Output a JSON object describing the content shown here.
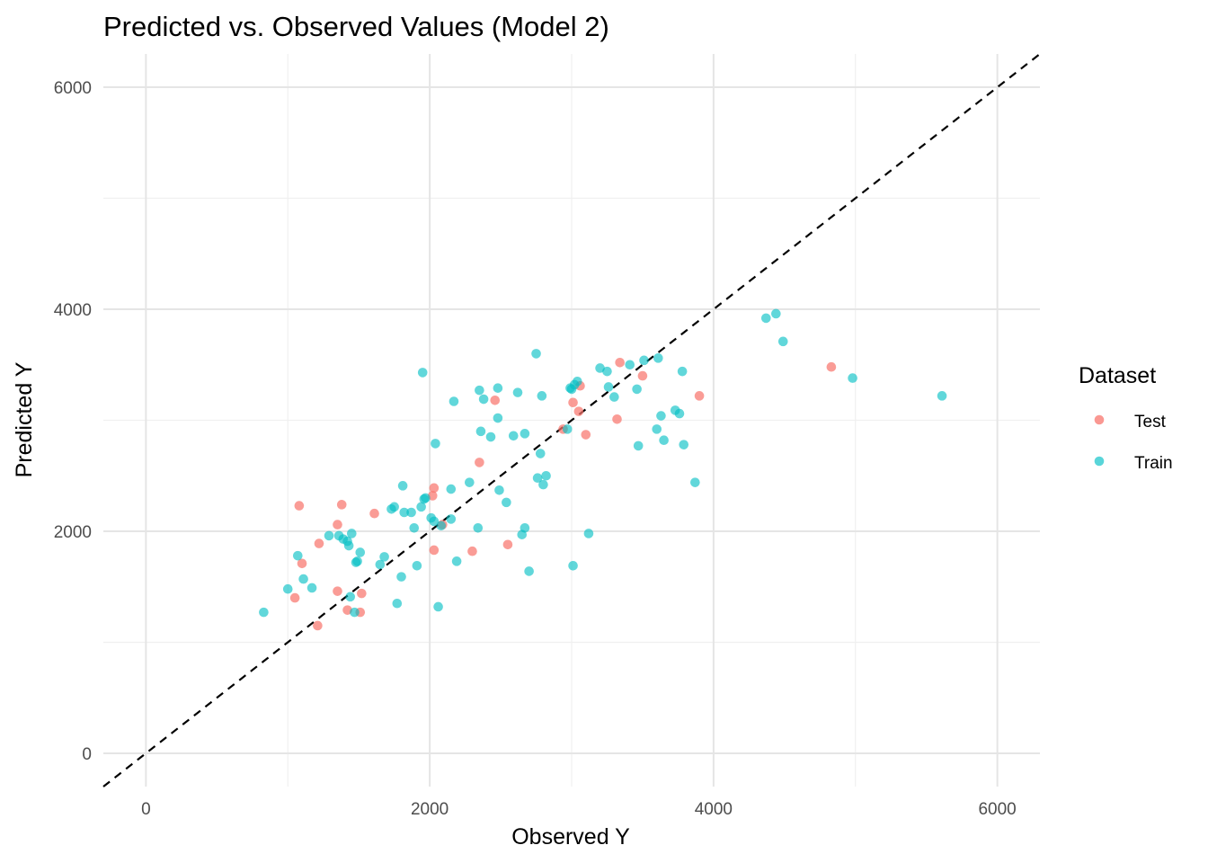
{
  "chart_data": {
    "type": "scatter",
    "title": "Predicted vs. Observed Values (Model 2)",
    "xlabel": "Observed Y",
    "ylabel": "Predicted Y",
    "xlim": [
      -300,
      6300
    ],
    "ylim": [
      -300,
      6300
    ],
    "xticks": [
      "0",
      "2000",
      "4000",
      "6000"
    ],
    "yticks": [
      "0",
      "2000",
      "4000",
      "6000"
    ],
    "x_tick_values": [
      0,
      2000,
      4000,
      6000
    ],
    "y_tick_values": [
      0,
      2000,
      4000,
      6000
    ],
    "grid": true,
    "legend_title": "Dataset",
    "legend_position": "right",
    "reference_line": "y = x (dashed)",
    "series": [
      {
        "name": "Test",
        "color": "#F8766D",
        "points": [
          [
            1080,
            2230
          ],
          [
            1100,
            1710
          ],
          [
            1050,
            1400
          ],
          [
            1220,
            1890
          ],
          [
            1210,
            1150
          ],
          [
            1350,
            2060
          ],
          [
            1380,
            2240
          ],
          [
            1350,
            1460
          ],
          [
            1420,
            1290
          ],
          [
            1510,
            1270
          ],
          [
            1520,
            1440
          ],
          [
            1610,
            2160
          ],
          [
            2020,
            2320
          ],
          [
            2030,
            2390
          ],
          [
            2030,
            1830
          ],
          [
            2090,
            2060
          ],
          [
            2300,
            1820
          ],
          [
            2350,
            2620
          ],
          [
            2460,
            3180
          ],
          [
            2550,
            1880
          ],
          [
            2940,
            2920
          ],
          [
            3010,
            3160
          ],
          [
            3050,
            3080
          ],
          [
            3060,
            3310
          ],
          [
            3100,
            2870
          ],
          [
            3320,
            3010
          ],
          [
            3340,
            3520
          ],
          [
            3500,
            3400
          ],
          [
            3900,
            3220
          ],
          [
            4830,
            3480
          ]
        ]
      },
      {
        "name": "Train",
        "color": "#00BFC4",
        "points": [
          [
            830,
            1270
          ],
          [
            1000,
            1480
          ],
          [
            1070,
            1780
          ],
          [
            1110,
            1570
          ],
          [
            1170,
            1490
          ],
          [
            1290,
            1960
          ],
          [
            1360,
            1960
          ],
          [
            1390,
            1930
          ],
          [
            1420,
            1910
          ],
          [
            1430,
            1870
          ],
          [
            1440,
            1410
          ],
          [
            1450,
            1980
          ],
          [
            1470,
            1270
          ],
          [
            1480,
            1720
          ],
          [
            1490,
            1730
          ],
          [
            1510,
            1810
          ],
          [
            1650,
            1700
          ],
          [
            1680,
            1770
          ],
          [
            1730,
            2200
          ],
          [
            1750,
            2220
          ],
          [
            1770,
            1350
          ],
          [
            1800,
            1590
          ],
          [
            1810,
            2410
          ],
          [
            1820,
            2170
          ],
          [
            1870,
            2170
          ],
          [
            1890,
            2030
          ],
          [
            1910,
            1690
          ],
          [
            1940,
            2220
          ],
          [
            1950,
            3430
          ],
          [
            1960,
            2290
          ],
          [
            1970,
            2300
          ],
          [
            2010,
            2120
          ],
          [
            2030,
            2090
          ],
          [
            2040,
            2790
          ],
          [
            2060,
            1320
          ],
          [
            2080,
            2050
          ],
          [
            2150,
            2110
          ],
          [
            2150,
            2380
          ],
          [
            2170,
            3170
          ],
          [
            2190,
            1730
          ],
          [
            2280,
            2440
          ],
          [
            2340,
            2030
          ],
          [
            2350,
            3270
          ],
          [
            2360,
            2900
          ],
          [
            2380,
            3190
          ],
          [
            2430,
            2850
          ],
          [
            2480,
            3290
          ],
          [
            2480,
            3020
          ],
          [
            2490,
            2370
          ],
          [
            2540,
            2260
          ],
          [
            2590,
            2860
          ],
          [
            2620,
            3250
          ],
          [
            2650,
            1970
          ],
          [
            2670,
            2030
          ],
          [
            2670,
            2880
          ],
          [
            2700,
            1640
          ],
          [
            2750,
            3600
          ],
          [
            2760,
            2480
          ],
          [
            2780,
            2700
          ],
          [
            2790,
            3220
          ],
          [
            2800,
            2420
          ],
          [
            2820,
            2500
          ],
          [
            2970,
            2920
          ],
          [
            2990,
            3290
          ],
          [
            3000,
            3280
          ],
          [
            3010,
            1690
          ],
          [
            3020,
            3320
          ],
          [
            3040,
            3350
          ],
          [
            3120,
            1980
          ],
          [
            3200,
            3470
          ],
          [
            3250,
            3440
          ],
          [
            3260,
            3300
          ],
          [
            3300,
            3210
          ],
          [
            3410,
            3500
          ],
          [
            3460,
            3280
          ],
          [
            3470,
            2770
          ],
          [
            3510,
            3540
          ],
          [
            3600,
            2920
          ],
          [
            3610,
            3560
          ],
          [
            3630,
            3040
          ],
          [
            3650,
            2820
          ],
          [
            3730,
            3090
          ],
          [
            3760,
            3060
          ],
          [
            3780,
            3440
          ],
          [
            3790,
            2780
          ],
          [
            3870,
            2440
          ],
          [
            4370,
            3920
          ],
          [
            4440,
            3960
          ],
          [
            4490,
            3710
          ],
          [
            4980,
            3380
          ],
          [
            5610,
            3220
          ]
        ]
      }
    ]
  }
}
